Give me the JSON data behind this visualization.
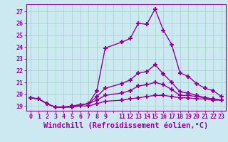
{
  "xlabel": "Windchill (Refroidissement éolien,°C)",
  "ylabel": "",
  "background_color": "#cce8f0",
  "grid_color": "#aad4cc",
  "line_color": "#990099",
  "xlim": [
    -0.5,
    23.5
  ],
  "ylim": [
    18.6,
    27.6
  ],
  "xtick_positions": [
    0,
    1,
    2,
    3,
    4,
    5,
    6,
    7,
    8,
    9,
    10,
    11,
    12,
    13,
    14,
    15,
    16,
    17,
    18,
    19,
    20,
    21,
    22,
    23
  ],
  "xtick_labels": [
    "0",
    "1",
    "2",
    "3",
    "4",
    "5",
    "6",
    "7",
    "8",
    "9",
    "",
    "11",
    "12",
    "13",
    "14",
    "15",
    "16",
    "17",
    "18",
    "19",
    "20",
    "21",
    "22",
    "23"
  ],
  "yticks": [
    19,
    20,
    21,
    22,
    23,
    24,
    25,
    26,
    27
  ],
  "series": [
    {
      "x": [
        0,
        1,
        2,
        3,
        4,
        5,
        6,
        7,
        8,
        9,
        11,
        12,
        13,
        14,
        15,
        16,
        17,
        18,
        19,
        20,
        21,
        22,
        23
      ],
      "y": [
        19.7,
        19.6,
        19.2,
        18.9,
        18.9,
        19.0,
        19.1,
        19.2,
        20.3,
        23.9,
        24.4,
        24.7,
        26.0,
        25.9,
        27.2,
        25.4,
        24.2,
        21.8,
        21.5,
        20.9,
        20.5,
        20.3,
        19.8
      ]
    },
    {
      "x": [
        0,
        1,
        2,
        3,
        4,
        5,
        6,
        7,
        8,
        9,
        11,
        12,
        13,
        14,
        15,
        16,
        17,
        18,
        19,
        20,
        21,
        22,
        23
      ],
      "y": [
        19.7,
        19.6,
        19.2,
        18.9,
        18.9,
        19.0,
        19.1,
        19.2,
        19.8,
        20.5,
        20.9,
        21.2,
        21.8,
        21.9,
        22.5,
        21.7,
        21.0,
        20.2,
        20.1,
        19.9,
        19.7,
        19.6,
        19.5
      ]
    },
    {
      "x": [
        0,
        1,
        2,
        3,
        4,
        5,
        6,
        7,
        8,
        9,
        11,
        12,
        13,
        14,
        15,
        16,
        17,
        18,
        19,
        20,
        21,
        22,
        23
      ],
      "y": [
        19.7,
        19.6,
        19.2,
        18.9,
        18.9,
        19.0,
        19.1,
        19.2,
        19.5,
        19.9,
        20.1,
        20.3,
        20.7,
        20.8,
        21.0,
        20.8,
        20.4,
        19.9,
        19.9,
        19.8,
        19.7,
        19.6,
        19.5
      ]
    },
    {
      "x": [
        0,
        1,
        2,
        3,
        4,
        5,
        6,
        7,
        8,
        9,
        11,
        12,
        13,
        14,
        15,
        16,
        17,
        18,
        19,
        20,
        21,
        22,
        23
      ],
      "y": [
        19.7,
        19.6,
        19.2,
        18.9,
        18.9,
        18.9,
        19.0,
        19.0,
        19.2,
        19.4,
        19.5,
        19.6,
        19.7,
        19.8,
        19.9,
        19.9,
        19.8,
        19.7,
        19.7,
        19.6,
        19.6,
        19.5,
        19.5
      ]
    }
  ],
  "marker": "+",
  "markersize": 5,
  "markeredgewidth": 1.5,
  "linewidth": 1.0,
  "tick_fontsize": 6,
  "xlabel_fontsize": 7.5
}
